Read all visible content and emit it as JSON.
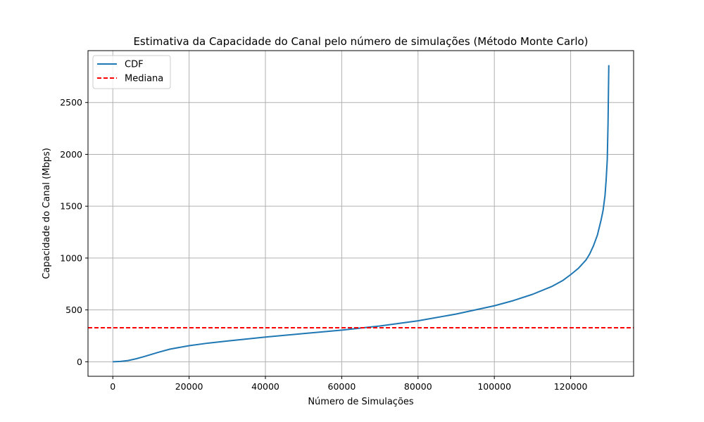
{
  "chart_data": {
    "type": "line",
    "title": "Estimativa da Capacidade do Canal pelo número de simulações (Método Monte Carlo)",
    "xlabel": "Número de Simulações",
    "ylabel": "Capacidade do Canal (Mbps)",
    "xlim": [
      -6500,
      136500
    ],
    "ylim": [
      -140,
      3000
    ],
    "xticks": [
      0,
      20000,
      40000,
      60000,
      80000,
      100000,
      120000
    ],
    "yticks": [
      0,
      500,
      1000,
      1500,
      2000,
      2500
    ],
    "grid": true,
    "legend_placement": "top-left",
    "series": [
      {
        "name": "CDF",
        "style": "solid",
        "color": "#1f77b4",
        "x": [
          0,
          2000,
          4000,
          6000,
          8000,
          10000,
          12000,
          15000,
          20000,
          25000,
          30000,
          40000,
          50000,
          60000,
          65000,
          70000,
          80000,
          90000,
          100000,
          105000,
          110000,
          115000,
          118000,
          120000,
          122000,
          124000,
          125000,
          126000,
          127000,
          128000,
          128500,
          129000,
          129300,
          129600,
          129800,
          130000
        ],
        "y": [
          0,
          3,
          12,
          28,
          48,
          70,
          92,
          122,
          155,
          180,
          200,
          238,
          272,
          305,
          325,
          345,
          395,
          460,
          540,
          590,
          650,
          725,
          785,
          840,
          900,
          980,
          1040,
          1120,
          1220,
          1370,
          1460,
          1600,
          1750,
          1950,
          2300,
          2860
        ]
      },
      {
        "name": "Mediana",
        "style": "dashed",
        "color": "#ff0000",
        "y": 328
      }
    ]
  }
}
